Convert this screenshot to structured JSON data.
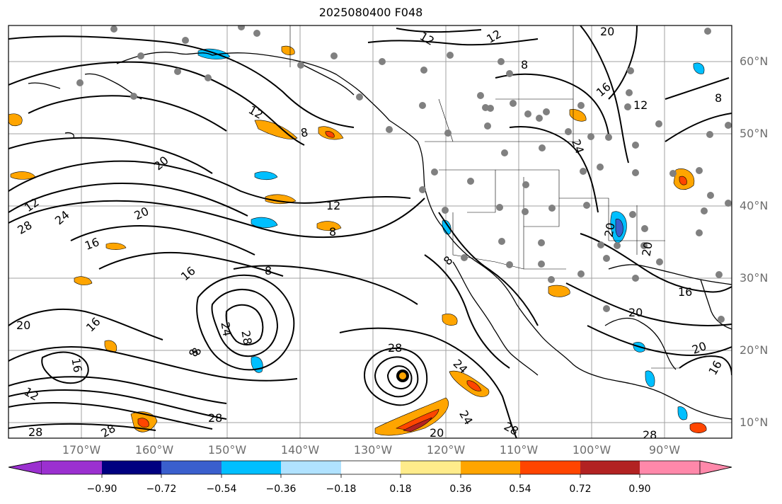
{
  "title": "2025080400 F048",
  "longitude_labels": [
    "170°W",
    "160°W",
    "150°W",
    "140°W",
    "130°W",
    "120°W",
    "110°W",
    "100°W",
    "90°W"
  ],
  "latitude_labels": [
    "60°N",
    "50°N",
    "40°N",
    "30°N",
    "20°N",
    "10°N"
  ],
  "colorbar": {
    "ticks": [
      "−0.90",
      "−0.72",
      "−0.54",
      "−0.36",
      "−0.18",
      "0.18",
      "0.36",
      "0.54",
      "0.72",
      "0.90"
    ],
    "colors": [
      "#9b30d0",
      "#000080",
      "#3a5fcd",
      "#00bfff",
      "#b0e2ff",
      "#ffffff",
      "#ffec8b",
      "#ffa500",
      "#ff4500",
      "#b22222",
      "#ff88aa"
    ]
  },
  "contour_labels": [
    {
      "text": "12"
    },
    {
      "text": "12"
    },
    {
      "text": "20"
    },
    {
      "text": "8"
    },
    {
      "text": "16"
    },
    {
      "text": "12"
    },
    {
      "text": "8"
    },
    {
      "text": "20"
    },
    {
      "text": "12"
    },
    {
      "text": "24"
    },
    {
      "text": "28"
    },
    {
      "text": "20"
    },
    {
      "text": "16"
    },
    {
      "text": "12"
    },
    {
      "text": "8"
    },
    {
      "text": "16"
    },
    {
      "text": "8"
    },
    {
      "text": "8"
    },
    {
      "text": "24"
    },
    {
      "text": "28"
    },
    {
      "text": "20"
    },
    {
      "text": "16"
    },
    {
      "text": "28"
    },
    {
      "text": "24"
    },
    {
      "text": "24"
    },
    {
      "text": "28"
    },
    {
      "text": "20"
    },
    {
      "text": "28"
    },
    {
      "text": "28"
    },
    {
      "text": "28"
    },
    {
      "text": "12"
    },
    {
      "text": "16"
    },
    {
      "text": "8"
    },
    {
      "text": "24"
    },
    {
      "text": "20"
    },
    {
      "text": "16"
    },
    {
      "text": "20"
    },
    {
      "text": "20"
    },
    {
      "text": "16"
    },
    {
      "text": "20"
    },
    {
      "text": "28"
    },
    {
      "text": "8"
    },
    {
      "text": "12"
    },
    {
      "text": "8"
    }
  ],
  "colors": {
    "contour": "#000000",
    "grid": "#a0a0a0",
    "station": "#808080",
    "label": "#6e6e6e"
  }
}
